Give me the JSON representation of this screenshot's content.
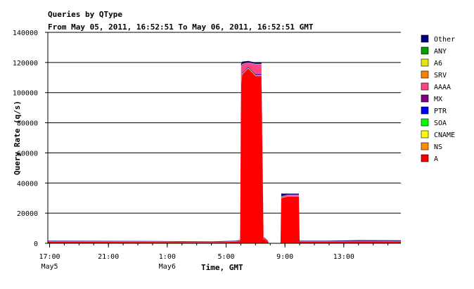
{
  "chart_data": {
    "type": "area",
    "title": "Queries by QType",
    "subtitle": "From May 05, 2011, 16:52:51 To May 06, 2011, 16:52:51 GMT",
    "xlabel": "Time, GMT",
    "ylabel": "Query Rate (q/s)",
    "ylim": [
      0,
      140000
    ],
    "yticks": [
      {
        "value": 0,
        "label": "0"
      },
      {
        "value": 20000,
        "label": "20000"
      },
      {
        "value": 40000,
        "label": "40000"
      },
      {
        "value": 60000,
        "label": "60000"
      },
      {
        "value": 80000,
        "label": "80000"
      },
      {
        "value": 100000,
        "label": "100000"
      },
      {
        "value": 120000,
        "label": "120000"
      },
      {
        "value": 140000,
        "label": "140000"
      }
    ],
    "xlim": [
      16.88,
      40.88
    ],
    "xticks": [
      {
        "value": 17,
        "label": "17:00",
        "sublabel": "May5"
      },
      {
        "value": 21,
        "label": "21:00",
        "sublabel": ""
      },
      {
        "value": 25,
        "label": "1:00",
        "sublabel": "May6"
      },
      {
        "value": 29,
        "label": "5:00",
        "sublabel": ""
      },
      {
        "value": 33,
        "label": "9:00",
        "sublabel": ""
      },
      {
        "value": 37,
        "label": "13:00",
        "sublabel": ""
      }
    ],
    "grid": true,
    "legend_position": "right",
    "stacked": true,
    "x": [
      16.88,
      24.0,
      28.0,
      29.7,
      29.95,
      30.02,
      30.1,
      30.5,
      31.0,
      31.4,
      31.55,
      31.6,
      31.85,
      31.9,
      32.0,
      32.7,
      32.75,
      33.2,
      33.5,
      33.95,
      34.0,
      36.0,
      38.0,
      40.88
    ],
    "series": [
      {
        "name": "A",
        "color": "#ff0000",
        "values": [
          1000,
          900,
          700,
          1000,
          1500,
          105000,
          112000,
          116000,
          111000,
          111000,
          2500,
          3000,
          1000,
          0,
          0,
          0,
          30000,
          31000,
          31000,
          31000,
          1000,
          1000,
          1200,
          1100
        ]
      },
      {
        "name": "NS",
        "color": "#ff8c00",
        "values": [
          20,
          20,
          20,
          20,
          20,
          300,
          300,
          300,
          300,
          300,
          30,
          30,
          20,
          0,
          0,
          0,
          100,
          100,
          100,
          100,
          20,
          20,
          20,
          20
        ]
      },
      {
        "name": "CNAME",
        "color": "#ffff00",
        "values": [
          20,
          20,
          20,
          20,
          20,
          200,
          200,
          200,
          200,
          200,
          20,
          20,
          20,
          0,
          0,
          0,
          50,
          50,
          50,
          50,
          20,
          20,
          20,
          20
        ]
      },
      {
        "name": "SOA",
        "color": "#00ff00",
        "values": [
          10,
          10,
          10,
          10,
          10,
          100,
          100,
          100,
          100,
          100,
          10,
          10,
          10,
          0,
          0,
          0,
          50,
          50,
          50,
          50,
          10,
          10,
          10,
          10
        ]
      },
      {
        "name": "PTR",
        "color": "#0000ff",
        "values": [
          40,
          40,
          40,
          40,
          40,
          400,
          400,
          400,
          400,
          400,
          40,
          40,
          40,
          0,
          0,
          0,
          100,
          100,
          100,
          100,
          40,
          40,
          40,
          40
        ]
      },
      {
        "name": "MX",
        "color": "#800080",
        "values": [
          40,
          40,
          40,
          40,
          40,
          300,
          300,
          300,
          300,
          300,
          40,
          40,
          40,
          0,
          0,
          0,
          100,
          100,
          100,
          100,
          40,
          40,
          40,
          40
        ]
      },
      {
        "name": "AAAA",
        "color": "#ff4488",
        "values": [
          200,
          200,
          150,
          200,
          300,
          11000,
          5500,
          2500,
          6500,
          6500,
          500,
          500,
          300,
          0,
          0,
          0,
          700,
          700,
          700,
          700,
          200,
          200,
          250,
          250
        ]
      },
      {
        "name": "SRV",
        "color": "#ff8000",
        "values": [
          10,
          10,
          10,
          10,
          10,
          100,
          100,
          100,
          100,
          100,
          10,
          10,
          10,
          0,
          0,
          0,
          50,
          50,
          50,
          50,
          10,
          10,
          10,
          10
        ]
      },
      {
        "name": "A6",
        "color": "#e8e800",
        "values": [
          10,
          10,
          10,
          10,
          10,
          100,
          100,
          100,
          100,
          100,
          10,
          10,
          10,
          0,
          0,
          0,
          50,
          50,
          50,
          50,
          10,
          10,
          10,
          10
        ]
      },
      {
        "name": "ANY",
        "color": "#00a000",
        "values": [
          10,
          10,
          10,
          10,
          10,
          100,
          100,
          100,
          100,
          100,
          10,
          10,
          10,
          0,
          0,
          0,
          50,
          50,
          50,
          50,
          10,
          10,
          10,
          10
        ]
      },
      {
        "name": "Other",
        "color": "#000080",
        "values": [
          300,
          300,
          250,
          300,
          350,
          1500,
          1500,
          900,
          900,
          900,
          300,
          300,
          300,
          0,
          0,
          0,
          1800,
          700,
          700,
          700,
          300,
          300,
          500,
          500
        ]
      }
    ],
    "legend_order": [
      "Other",
      "ANY",
      "A6",
      "SRV",
      "AAAA",
      "MX",
      "PTR",
      "SOA",
      "CNAME",
      "NS",
      "A"
    ]
  }
}
